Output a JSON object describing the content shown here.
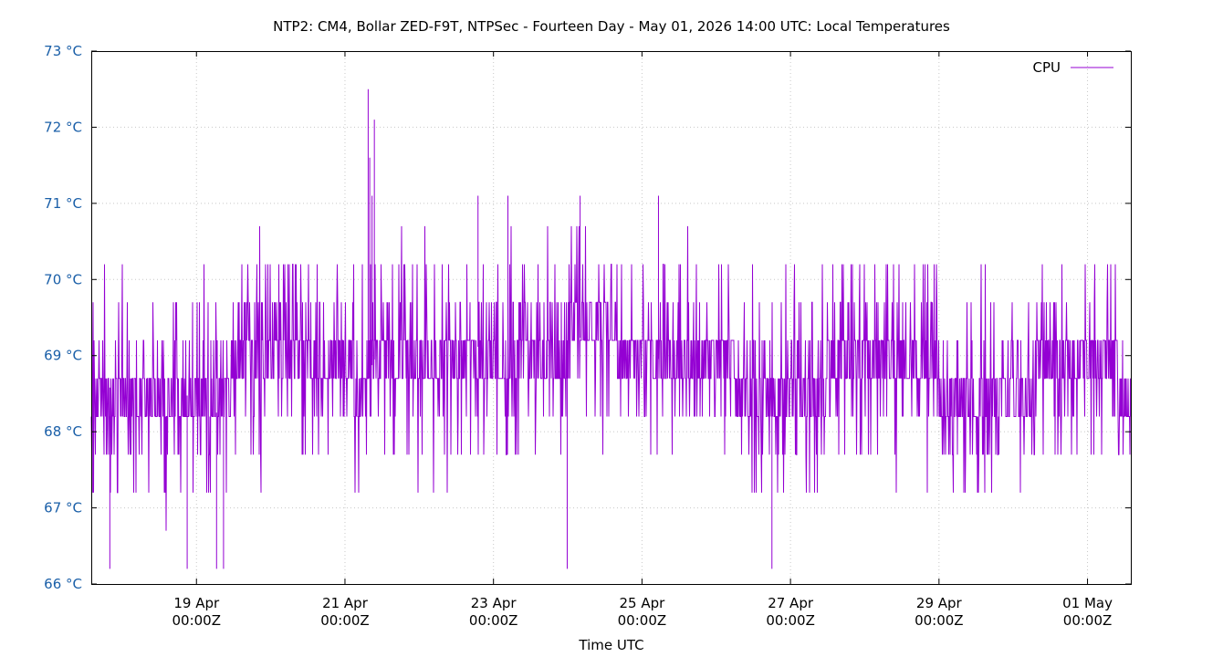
{
  "chart_data": {
    "type": "line",
    "title": "NTP2: CM4, Bollar ZED-F9T, NTPSec - Fourteen Day - May 01, 2026 14:00 UTC: Local Temperatures",
    "xlabel": "Time UTC",
    "ylabel": "",
    "x_range": [
      "2026-04-17T14:00Z",
      "2026-05-01T14:00Z"
    ],
    "ylim": [
      66,
      73
    ],
    "y_ticks": [
      {
        "value": 73,
        "label": "73 °C"
      },
      {
        "value": 72,
        "label": "72 °C"
      },
      {
        "value": 71,
        "label": "71 °C"
      },
      {
        "value": 70,
        "label": "70 °C"
      },
      {
        "value": 69,
        "label": "69 °C"
      },
      {
        "value": 68,
        "label": "68 °C"
      },
      {
        "value": 67,
        "label": "67 °C"
      },
      {
        "value": 66,
        "label": "66 °C"
      }
    ],
    "x_ticks": [
      {
        "date": "2026-04-19T00:00Z",
        "line1": "19 Apr",
        "line2": "00:00Z"
      },
      {
        "date": "2026-04-21T00:00Z",
        "line1": "21 Apr",
        "line2": "00:00Z"
      },
      {
        "date": "2026-04-23T00:00Z",
        "line1": "23 Apr",
        "line2": "00:00Z"
      },
      {
        "date": "2026-04-25T00:00Z",
        "line1": "25 Apr",
        "line2": "00:00Z"
      },
      {
        "date": "2026-04-27T00:00Z",
        "line1": "27 Apr",
        "line2": "00:00Z"
      },
      {
        "date": "2026-04-29T00:00Z",
        "line1": "29 Apr",
        "line2": "00:00Z"
      },
      {
        "date": "2026-05-01T00:00Z",
        "line1": "01 May",
        "line2": "00:00Z"
      }
    ],
    "grid": true,
    "legend_position": "top-right",
    "series": [
      {
        "name": "CPU",
        "color": "#9400d3",
        "step_c": 0.5,
        "points": [
          {
            "t": "2026-04-17T14:00Z",
            "v": 68.7
          },
          {
            "t": "2026-04-18T00:00Z",
            "v": 68.5
          },
          {
            "t": "2026-04-18T12:00Z",
            "v": 68.4
          },
          {
            "t": "2026-04-19T00:00Z",
            "v": 68.5
          },
          {
            "t": "2026-04-19T06:00Z",
            "v": 68.2
          },
          {
            "t": "2026-04-19T12:00Z",
            "v": 68.8
          },
          {
            "t": "2026-04-20T00:00Z",
            "v": 68.9
          },
          {
            "t": "2026-04-20T12:00Z",
            "v": 68.8
          },
          {
            "t": "2026-04-21T00:00Z",
            "v": 68.8
          },
          {
            "t": "2026-04-21T06:00Z",
            "v": 68.6
          },
          {
            "t": "2026-04-21T12:00Z",
            "v": 69.2
          },
          {
            "t": "2026-04-22T00:00Z",
            "v": 69.0
          },
          {
            "t": "2026-04-22T12:00Z",
            "v": 69.0
          },
          {
            "t": "2026-04-23T00:00Z",
            "v": 69.2
          },
          {
            "t": "2026-04-23T12:00Z",
            "v": 69.1
          },
          {
            "t": "2026-04-24T00:00Z",
            "v": 69.2
          },
          {
            "t": "2026-04-24T12:00Z",
            "v": 69.3
          },
          {
            "t": "2026-04-25T00:00Z",
            "v": 69.0
          },
          {
            "t": "2026-04-25T12:00Z",
            "v": 68.9
          },
          {
            "t": "2026-04-26T00:00Z",
            "v": 68.8
          },
          {
            "t": "2026-04-26T12:00Z",
            "v": 68.6
          },
          {
            "t": "2026-04-27T00:00Z",
            "v": 68.6
          },
          {
            "t": "2026-04-27T12:00Z",
            "v": 68.7
          },
          {
            "t": "2026-04-28T00:00Z",
            "v": 68.8
          },
          {
            "t": "2026-04-28T12:00Z",
            "v": 68.8
          },
          {
            "t": "2026-04-29T00:00Z",
            "v": 68.7
          },
          {
            "t": "2026-04-29T12:00Z",
            "v": 68.6
          },
          {
            "t": "2026-04-30T00:00Z",
            "v": 68.5
          },
          {
            "t": "2026-04-30T12:00Z",
            "v": 68.8
          },
          {
            "t": "2026-05-01T00:00Z",
            "v": 68.9
          },
          {
            "t": "2026-05-01T14:00Z",
            "v": 68.6
          }
        ],
        "peaks": [
          {
            "t": "2026-04-21T07:30Z",
            "v": 72.5
          },
          {
            "t": "2026-04-21T08:00Z",
            "v": 71.6
          },
          {
            "t": "2026-04-21T09:30Z",
            "v": 72.1
          },
          {
            "t": "2026-04-21T08:45Z",
            "v": 71.1
          },
          {
            "t": "2026-04-23T04:40Z",
            "v": 71.1
          },
          {
            "t": "2026-04-24T04:00Z",
            "v": 71.1
          },
          {
            "t": "2026-04-22T19:00Z",
            "v": 71.1
          },
          {
            "t": "2026-04-25T05:20Z",
            "v": 71.1
          },
          {
            "t": "2026-04-17T14:30Z",
            "v": 67.2
          },
          {
            "t": "2026-04-17T20:00Z",
            "v": 66.2
          },
          {
            "t": "2026-04-18T21:00Z",
            "v": 66.2
          },
          {
            "t": "2026-04-19T06:30Z",
            "v": 66.2
          },
          {
            "t": "2026-04-19T08:45Z",
            "v": 66.2
          },
          {
            "t": "2026-04-23T23:50Z",
            "v": 66.2
          },
          {
            "t": "2026-04-26T18:00Z",
            "v": 66.2
          }
        ]
      }
    ]
  }
}
